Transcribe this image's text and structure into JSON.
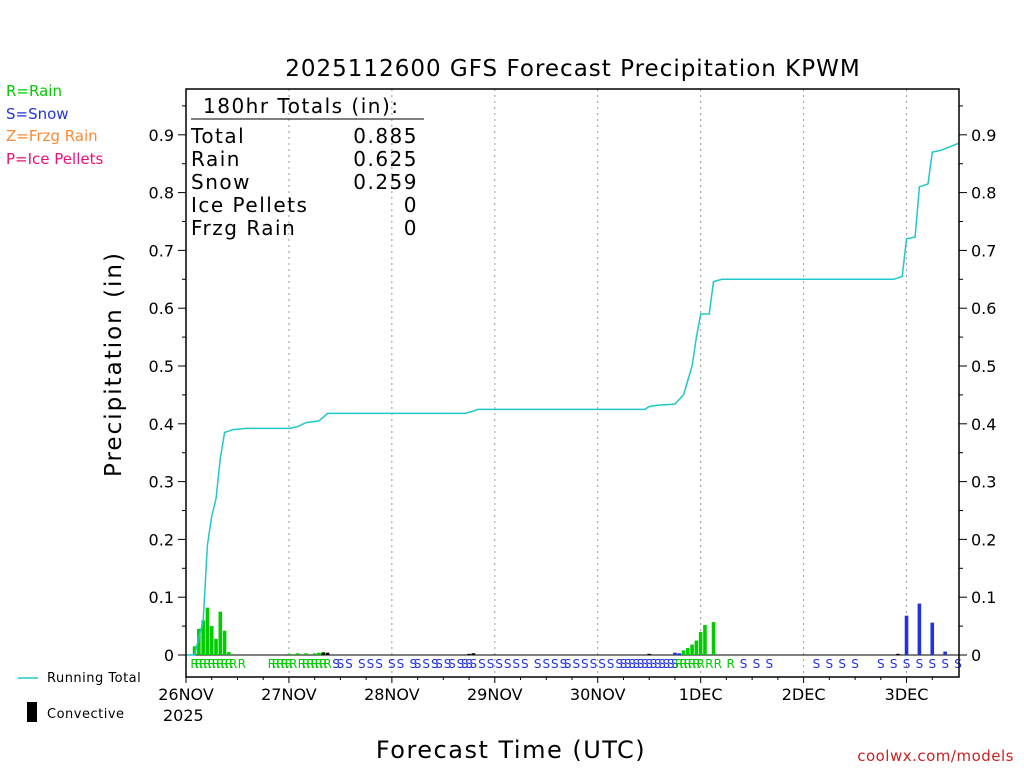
{
  "colors": {
    "rain": "#00cc00",
    "snow": "#2233dd",
    "frzg_rain": "#ff8833",
    "ice_pellets": "#ee1177",
    "running_total": "#22c8c8",
    "convective": "#000000",
    "brand": "#cc2222"
  },
  "legend": {
    "rain": "R=Rain",
    "snow": "S=Snow",
    "frzg_rain": "Z=Frzg Rain",
    "ice_pellets": "P=Ice Pellets",
    "running_total": "Running Total",
    "convective": "Convective"
  },
  "totals": {
    "header": "180hr Totals (in):",
    "rows": [
      {
        "label": "Total",
        "value": "0.885"
      },
      {
        "label": "Rain",
        "value": "0.625"
      },
      {
        "label": "Snow",
        "value": "0.259"
      },
      {
        "label": "Ice Pellets",
        "value": "0"
      },
      {
        "label": "Frzg Rain",
        "value": "0"
      }
    ]
  },
  "credit": "coolwx.com/models",
  "chart_data": {
    "type": "bar",
    "title": "2025112600 GFS Forecast Precipitation KPWM",
    "xlabel": "Forecast Time (UTC)",
    "ylabel": "Precipitation (in)",
    "ylim": [
      0,
      0.98
    ],
    "xlim_hours": [
      0,
      180
    ],
    "yticks": [
      "0",
      "0.1",
      "0.2",
      "0.3",
      "0.4",
      "0.5",
      "0.6",
      "0.7",
      "0.8",
      "0.9"
    ],
    "ytick_values": [
      0,
      0.1,
      0.2,
      0.3,
      0.4,
      0.5,
      0.6,
      0.7,
      0.8,
      0.9
    ],
    "xticks": [
      {
        "hour": 0,
        "label": "26NOV"
      },
      {
        "hour": 24,
        "label": "27NOV"
      },
      {
        "hour": 48,
        "label": "28NOV"
      },
      {
        "hour": 72,
        "label": "29NOV"
      },
      {
        "hour": 96,
        "label": "30NOV"
      },
      {
        "hour": 120,
        "label": "1DEC"
      },
      {
        "hour": 144,
        "label": "2DEC"
      },
      {
        "hour": 168,
        "label": "3DEC"
      }
    ],
    "year_label": "2025",
    "precip_bars": [
      {
        "hour": 2,
        "type": "rain",
        "value": 0.015
      },
      {
        "hour": 3,
        "type": "rain",
        "value": 0.045
      },
      {
        "hour": 4,
        "type": "rain",
        "value": 0.06
      },
      {
        "hour": 5,
        "type": "rain",
        "value": 0.082
      },
      {
        "hour": 6,
        "type": "rain",
        "value": 0.05
      },
      {
        "hour": 7,
        "type": "rain",
        "value": 0.028
      },
      {
        "hour": 8,
        "type": "rain",
        "value": 0.075
      },
      {
        "hour": 9,
        "type": "rain",
        "value": 0.042
      },
      {
        "hour": 10,
        "type": "rain",
        "value": 0.005
      },
      {
        "hour": 24,
        "type": "rain",
        "value": 0.002
      },
      {
        "hour": 26,
        "type": "rain",
        "value": 0.003
      },
      {
        "hour": 28,
        "type": "rain",
        "value": 0.003
      },
      {
        "hour": 30,
        "type": "rain",
        "value": 0.003
      },
      {
        "hour": 31,
        "type": "rain",
        "value": 0.004
      },
      {
        "hour": 32,
        "type": "rain",
        "value": 0.005
      },
      {
        "hour": 33,
        "type": "rain",
        "value": 0.003
      },
      {
        "hour": 67,
        "type": "snow",
        "value": 0.002
      },
      {
        "hour": 114,
        "type": "snow",
        "value": 0.004
      },
      {
        "hour": 115,
        "type": "snow",
        "value": 0.003
      },
      {
        "hour": 116,
        "type": "rain",
        "value": 0.008
      },
      {
        "hour": 117,
        "type": "rain",
        "value": 0.012
      },
      {
        "hour": 118,
        "type": "rain",
        "value": 0.018
      },
      {
        "hour": 119,
        "type": "rain",
        "value": 0.025
      },
      {
        "hour": 120,
        "type": "rain",
        "value": 0.04
      },
      {
        "hour": 121,
        "type": "rain",
        "value": 0.052
      },
      {
        "hour": 123,
        "type": "rain",
        "value": 0.057
      },
      {
        "hour": 168,
        "type": "snow",
        "value": 0.068
      },
      {
        "hour": 171,
        "type": "snow",
        "value": 0.089
      },
      {
        "hour": 174,
        "type": "snow",
        "value": 0.056
      },
      {
        "hour": 177,
        "type": "snow",
        "value": 0.006
      }
    ],
    "convective_bars": [
      {
        "hour": 32,
        "value": 0.004
      },
      {
        "hour": 33,
        "value": 0.004
      },
      {
        "hour": 66,
        "value": 0.002
      },
      {
        "hour": 67,
        "value": 0.003
      },
      {
        "hour": 108,
        "value": 0.002
      },
      {
        "hour": 166,
        "value": 0.002
      }
    ],
    "running_total": [
      [
        0,
        0.0
      ],
      [
        2,
        0.0
      ],
      [
        4,
        0.06
      ],
      [
        5,
        0.19
      ],
      [
        6,
        0.24
      ],
      [
        7,
        0.27
      ],
      [
        8,
        0.34
      ],
      [
        9,
        0.385
      ],
      [
        11,
        0.39
      ],
      [
        14,
        0.392
      ],
      [
        24,
        0.392
      ],
      [
        26,
        0.395
      ],
      [
        28,
        0.402
      ],
      [
        31,
        0.405
      ],
      [
        33,
        0.418
      ],
      [
        48,
        0.418
      ],
      [
        65,
        0.418
      ],
      [
        67,
        0.422
      ],
      [
        68,
        0.425
      ],
      [
        72,
        0.425
      ],
      [
        96,
        0.425
      ],
      [
        107,
        0.425
      ],
      [
        108,
        0.43
      ],
      [
        110,
        0.432
      ],
      [
        114,
        0.434
      ],
      [
        116,
        0.45
      ],
      [
        118,
        0.5
      ],
      [
        119,
        0.55
      ],
      [
        120,
        0.59
      ],
      [
        122,
        0.59
      ],
      [
        123,
        0.646
      ],
      [
        125,
        0.65
      ],
      [
        144,
        0.65
      ],
      [
        165,
        0.65
      ],
      [
        167,
        0.655
      ],
      [
        168,
        0.72
      ],
      [
        170,
        0.723
      ],
      [
        171,
        0.81
      ],
      [
        173,
        0.815
      ],
      [
        174,
        0.87
      ],
      [
        176,
        0.873
      ],
      [
        177,
        0.876
      ],
      [
        180,
        0.885
      ]
    ],
    "type_labels": [
      {
        "hour": 2,
        "text": "R"
      },
      {
        "hour": 3,
        "text": "R"
      },
      {
        "hour": 4,
        "text": "R"
      },
      {
        "hour": 5,
        "text": "R"
      },
      {
        "hour": 6,
        "text": "R"
      },
      {
        "hour": 7,
        "text": "R"
      },
      {
        "hour": 8,
        "text": "R"
      },
      {
        "hour": 9,
        "text": "R"
      },
      {
        "hour": 10,
        "text": "R"
      },
      {
        "hour": 11,
        "text": "R"
      },
      {
        "hour": 13,
        "text": "R"
      },
      {
        "hour": 20,
        "text": "R"
      },
      {
        "hour": 21,
        "text": "R"
      },
      {
        "hour": 22,
        "text": "R"
      },
      {
        "hour": 23,
        "text": "R"
      },
      {
        "hour": 24,
        "text": "R"
      },
      {
        "hour": 25,
        "text": "R"
      },
      {
        "hour": 27,
        "text": "R"
      },
      {
        "hour": 28,
        "text": "R"
      },
      {
        "hour": 29,
        "text": "R"
      },
      {
        "hour": 30,
        "text": "R"
      },
      {
        "hour": 31,
        "text": "R"
      },
      {
        "hour": 32,
        "text": "R"
      },
      {
        "hour": 33,
        "text": "R"
      },
      {
        "hour": 35,
        "text": "S"
      },
      {
        "hour": 36,
        "text": "S"
      },
      {
        "hour": 38,
        "text": "S"
      },
      {
        "hour": 41,
        "text": "S"
      },
      {
        "hour": 43,
        "text": "S"
      },
      {
        "hour": 45,
        "text": "S"
      },
      {
        "hour": 48,
        "text": "S"
      },
      {
        "hour": 50,
        "text": "S"
      },
      {
        "hour": 53,
        "text": "S"
      },
      {
        "hour": 54,
        "text": "S"
      },
      {
        "hour": 56,
        "text": "S"
      },
      {
        "hour": 58,
        "text": "S"
      },
      {
        "hour": 59,
        "text": "S"
      },
      {
        "hour": 61,
        "text": "S"
      },
      {
        "hour": 62,
        "text": "S"
      },
      {
        "hour": 64,
        "text": "S"
      },
      {
        "hour": 65,
        "text": "S"
      },
      {
        "hour": 66,
        "text": "S"
      },
      {
        "hour": 67,
        "text": "S"
      },
      {
        "hour": 69,
        "text": "S"
      },
      {
        "hour": 71,
        "text": "S"
      },
      {
        "hour": 73,
        "text": "S"
      },
      {
        "hour": 75,
        "text": "S"
      },
      {
        "hour": 77,
        "text": "S"
      },
      {
        "hour": 79,
        "text": "S"
      },
      {
        "hour": 82,
        "text": "S"
      },
      {
        "hour": 84,
        "text": "S"
      },
      {
        "hour": 86,
        "text": "S"
      },
      {
        "hour": 88,
        "text": "S"
      },
      {
        "hour": 89,
        "text": "S"
      },
      {
        "hour": 91,
        "text": "S"
      },
      {
        "hour": 93,
        "text": "S"
      },
      {
        "hour": 95,
        "text": "S"
      },
      {
        "hour": 97,
        "text": "S"
      },
      {
        "hour": 99,
        "text": "S"
      },
      {
        "hour": 101,
        "text": "S"
      },
      {
        "hour": 102,
        "text": "S"
      },
      {
        "hour": 103,
        "text": "S"
      },
      {
        "hour": 104,
        "text": "S"
      },
      {
        "hour": 105,
        "text": "S"
      },
      {
        "hour": 106,
        "text": "S"
      },
      {
        "hour": 107,
        "text": "S"
      },
      {
        "hour": 108,
        "text": "S"
      },
      {
        "hour": 109,
        "text": "S"
      },
      {
        "hour": 110,
        "text": "S"
      },
      {
        "hour": 111,
        "text": "S"
      },
      {
        "hour": 112,
        "text": "S"
      },
      {
        "hour": 113,
        "text": "S"
      },
      {
        "hour": 114,
        "text": "S"
      },
      {
        "hour": 115,
        "text": "R"
      },
      {
        "hour": 116,
        "text": "R"
      },
      {
        "hour": 117,
        "text": "R"
      },
      {
        "hour": 118,
        "text": "R"
      },
      {
        "hour": 119,
        "text": "R"
      },
      {
        "hour": 120,
        "text": "R"
      },
      {
        "hour": 122,
        "text": "R"
      },
      {
        "hour": 124,
        "text": "R"
      },
      {
        "hour": 127,
        "text": "R"
      },
      {
        "hour": 130,
        "text": "S"
      },
      {
        "hour": 133,
        "text": "S"
      },
      {
        "hour": 136,
        "text": "S"
      },
      {
        "hour": 147,
        "text": "S"
      },
      {
        "hour": 150,
        "text": "S"
      },
      {
        "hour": 153,
        "text": "S"
      },
      {
        "hour": 156,
        "text": "S"
      },
      {
        "hour": 162,
        "text": "S"
      },
      {
        "hour": 165,
        "text": "S"
      },
      {
        "hour": 168,
        "text": "S"
      },
      {
        "hour": 171,
        "text": "S"
      },
      {
        "hour": 174,
        "text": "S"
      },
      {
        "hour": 177,
        "text": "S"
      },
      {
        "hour": 180,
        "text": "S"
      }
    ]
  }
}
